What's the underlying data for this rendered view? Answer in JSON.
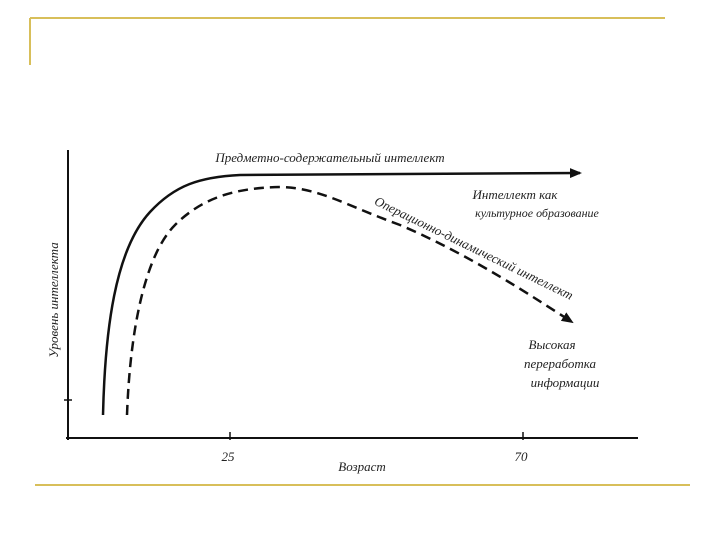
{
  "diagram": {
    "curves": [
      {
        "label": "Предметно-содержательный интеллект"
      },
      {
        "label": "Операционно-динамический интеллект"
      }
    ],
    "annotations": [
      {
        "lines": [
          "Интеллект как",
          "культурное образование"
        ]
      },
      {
        "lines": [
          "Высокая",
          "переработка",
          "информации"
        ]
      }
    ],
    "x_axis": {
      "label": "Возраст",
      "ticks": [
        "25",
        "70"
      ]
    },
    "y_axis": {
      "label": "Уровень интеллекта"
    }
  }
}
